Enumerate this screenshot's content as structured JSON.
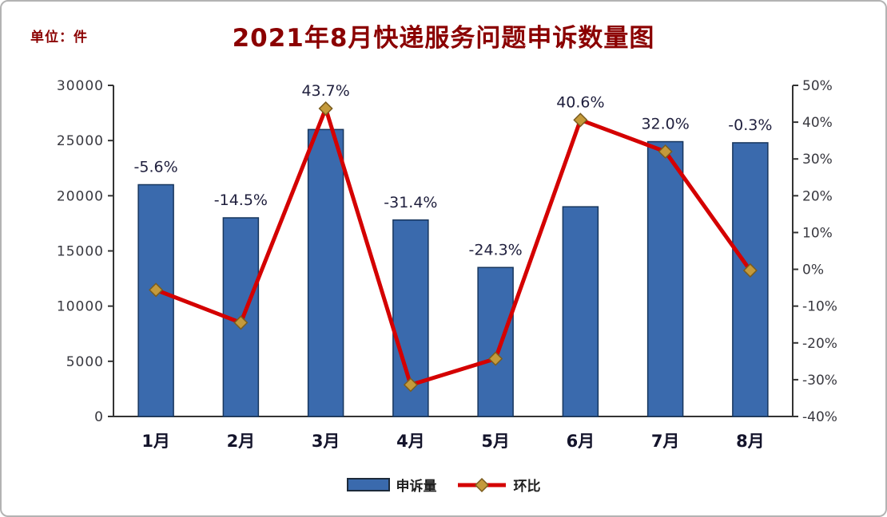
{
  "header": {
    "unit_label": "单位：件",
    "title": "2021年8月快递服务问题申诉数量图"
  },
  "chart_data": {
    "type": "bar+line combo",
    "categories": [
      "1月",
      "2月",
      "3月",
      "4月",
      "5月",
      "6月",
      "7月",
      "8月"
    ],
    "series": [
      {
        "name": "申诉量",
        "type": "bar",
        "axis": "left",
        "color": "#3A6AAD",
        "border_color": "#17365D",
        "values": [
          21000,
          18000,
          26000,
          17800,
          13500,
          19000,
          24900,
          24800
        ]
      },
      {
        "name": "环比",
        "type": "line",
        "axis": "right",
        "color": "#D40000",
        "marker": "diamond",
        "marker_color": "#C49A3B",
        "values": [
          -5.6,
          -14.5,
          43.7,
          -31.4,
          -24.3,
          40.6,
          32.0,
          -0.3
        ],
        "labels": [
          "-5.6%",
          "-14.5%",
          "43.7%",
          "-31.4%",
          "-24.3%",
          "40.6%",
          "32.0%",
          "-0.3%"
        ]
      }
    ],
    "y_left": {
      "min": 0,
      "max": 30000,
      "step": 5000,
      "tick_labels": [
        "0",
        "5000",
        "10000",
        "15000",
        "20000",
        "25000",
        "30000"
      ]
    },
    "y_right": {
      "min": -40,
      "max": 50,
      "step": 10,
      "tick_labels": [
        "-40%",
        "-30%",
        "-20%",
        "-10%",
        "0%",
        "10%",
        "20%",
        "30%",
        "40%",
        "50%"
      ]
    },
    "grid": "off",
    "legend_position": "bottom"
  }
}
